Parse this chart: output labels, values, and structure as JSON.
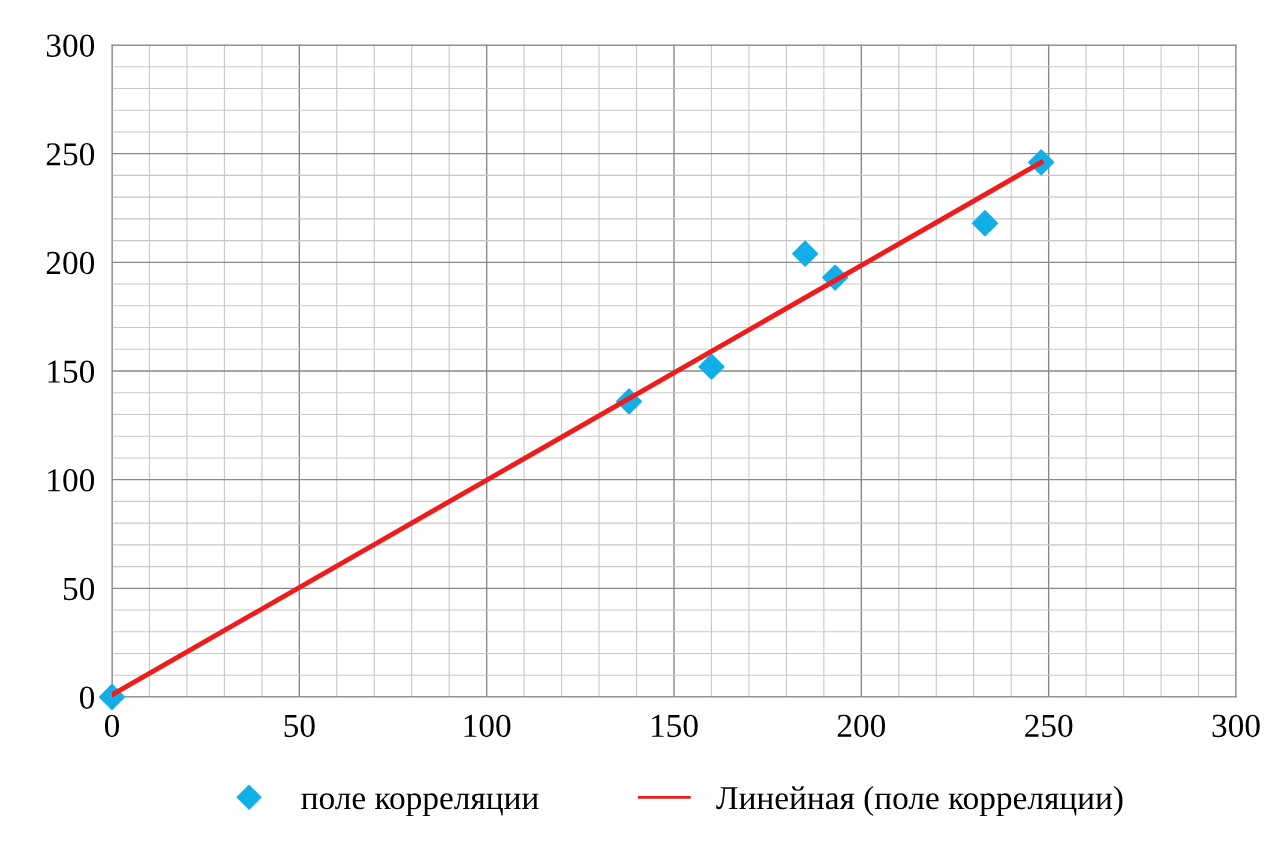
{
  "chart_data": {
    "type": "scatter",
    "series": [
      {
        "name": "поле корреляции",
        "color": "#12aee8",
        "marker": "diamond",
        "x": [
          0,
          138,
          160,
          185,
          193,
          233,
          248
        ],
        "values": [
          0,
          136,
          152,
          204,
          193,
          218,
          246
        ]
      },
      {
        "name": "Линейная (поле корреляции)",
        "type": "line",
        "color": "#ee1c1c",
        "marker": "none",
        "line_style": "solid",
        "x": [
          0,
          248
        ],
        "values": [
          1,
          246
        ]
      }
    ],
    "xlim": [
      0,
      300
    ],
    "xticks": [
      0,
      50,
      100,
      150,
      200,
      250,
      300
    ],
    "ylim": [
      0,
      300
    ],
    "yticks": [
      0,
      50,
      100,
      150,
      200,
      250,
      300
    ],
    "grid": true,
    "legend": "bottom"
  }
}
